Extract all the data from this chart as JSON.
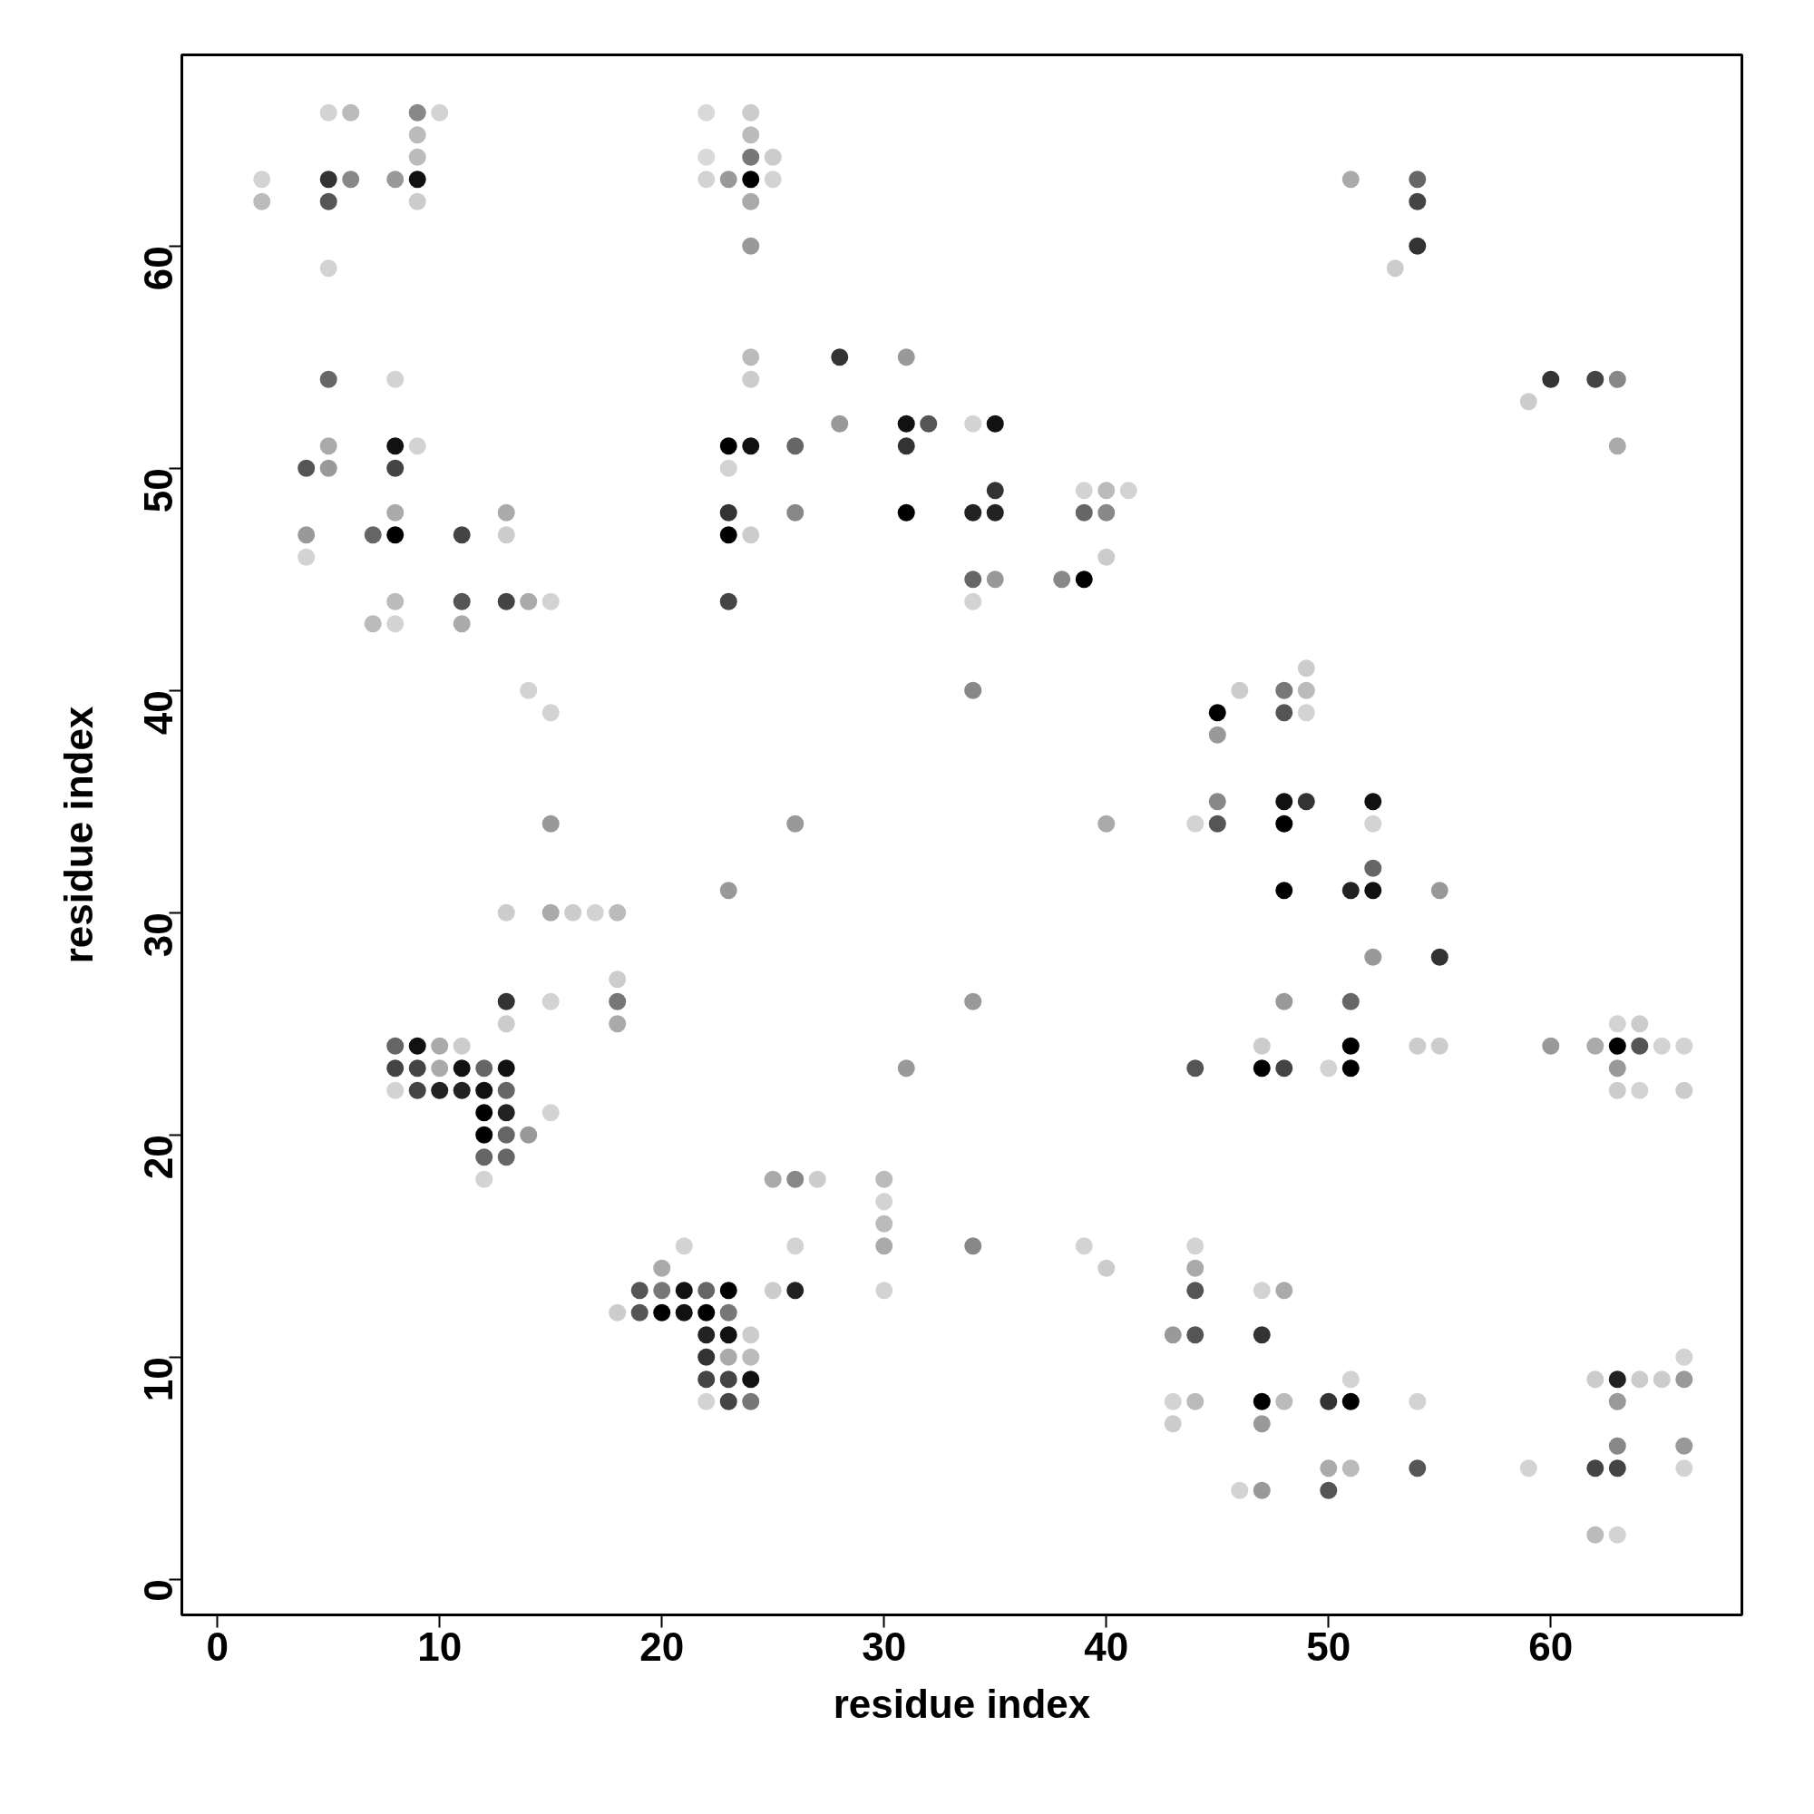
{
  "chart_data": {
    "type": "scatter",
    "xlabel": "residue index",
    "ylabel": "residue index",
    "xlim": [
      -1.6,
      68.6
    ],
    "ylim": [
      -1.6,
      68.6
    ],
    "xticks": [
      0,
      10,
      20,
      30,
      40,
      50,
      60
    ],
    "yticks": [
      0,
      10,
      20,
      30,
      40,
      50,
      60
    ],
    "grid": false,
    "marker": "circle",
    "series": [
      {
        "x": [
          5,
          6,
          9,
          10,
          22,
          24,
          9,
          24,
          9,
          22,
          24,
          25,
          2,
          5,
          6,
          8,
          9,
          22,
          23,
          24,
          25,
          51,
          54,
          2,
          5,
          9,
          24,
          54,
          24,
          54,
          5,
          53,
          24,
          28,
          31,
          5,
          8,
          24,
          60,
          62,
          63,
          59,
          28,
          31,
          32,
          34,
          35,
          5,
          8,
          9,
          23,
          24,
          26,
          31,
          63,
          4,
          5,
          8,
          23,
          35,
          39,
          40,
          41,
          8,
          13,
          23,
          26,
          31,
          34,
          35,
          39,
          40,
          4,
          7,
          8,
          11,
          13,
          23,
          24,
          4,
          40,
          34,
          35,
          38,
          39,
          8,
          11,
          13,
          14,
          15,
          23,
          34,
          7,
          8,
          11,
          49,
          14,
          34,
          46,
          48,
          49,
          15,
          45,
          48,
          49,
          45,
          45,
          48,
          49,
          52,
          15,
          26,
          40,
          44,
          45,
          48,
          52,
          52,
          23,
          48,
          51,
          52,
          55,
          13,
          15,
          16,
          17,
          18,
          52,
          55,
          18,
          13,
          15,
          18,
          34,
          48,
          51,
          13,
          18,
          63,
          64,
          8,
          9,
          10,
          11,
          47,
          51,
          54,
          55,
          60,
          62,
          63,
          64,
          65,
          66,
          8,
          9,
          10,
          11,
          12,
          13,
          31,
          44,
          47,
          48,
          50,
          51,
          63,
          8,
          9,
          10,
          11,
          12,
          13,
          63,
          64,
          66,
          12,
          13,
          15,
          12,
          13,
          14,
          12,
          13,
          12,
          25,
          26,
          27,
          30,
          30,
          30,
          21,
          26,
          30,
          34,
          39,
          44,
          20,
          40,
          44,
          19,
          20,
          21,
          22,
          23,
          25,
          26,
          30,
          44,
          47,
          48,
          18,
          19,
          20,
          21,
          22,
          23,
          22,
          23,
          24,
          43,
          44,
          47,
          22,
          23,
          24,
          66,
          22,
          23,
          24,
          51,
          62,
          63,
          64,
          65,
          66,
          22,
          23,
          24,
          43,
          44,
          47,
          48,
          50,
          51,
          54,
          63,
          43,
          47,
          63,
          66,
          50,
          51,
          54,
          59,
          62,
          63,
          66,
          46,
          47,
          50,
          62,
          63
        ],
        "values": [
          66,
          66,
          66,
          66,
          66,
          66,
          65,
          65,
          64,
          64,
          64,
          64,
          63,
          63,
          63,
          63,
          63,
          63,
          63,
          63,
          63,
          63,
          63,
          62,
          62,
          62,
          62,
          62,
          60,
          60,
          59,
          59,
          55,
          55,
          55,
          54,
          54,
          54,
          54,
          54,
          54,
          53,
          52,
          52,
          52,
          52,
          52,
          51,
          51,
          51,
          51,
          51,
          51,
          51,
          51,
          50,
          50,
          50,
          50,
          49,
          49,
          49,
          49,
          48,
          48,
          48,
          48,
          48,
          48,
          48,
          48,
          48,
          47,
          47,
          47,
          47,
          47,
          47,
          47,
          46,
          46,
          45,
          45,
          45,
          45,
          44,
          44,
          44,
          44,
          44,
          44,
          44,
          43,
          43,
          43,
          41,
          40,
          40,
          40,
          40,
          40,
          39,
          39,
          39,
          39,
          38,
          35,
          35,
          35,
          35,
          34,
          34,
          34,
          34,
          34,
          34,
          34,
          32,
          31,
          31,
          31,
          31,
          31,
          30,
          30,
          30,
          30,
          30,
          28,
          28,
          27,
          26,
          26,
          26,
          26,
          26,
          26,
          25,
          25,
          25,
          25,
          24,
          24,
          24,
          24,
          24,
          24,
          24,
          24,
          24,
          24,
          24,
          24,
          24,
          24,
          23,
          23,
          23,
          23,
          23,
          23,
          23,
          23,
          23,
          23,
          23,
          23,
          23,
          22,
          22,
          22,
          22,
          22,
          22,
          22,
          22,
          22,
          21,
          21,
          21,
          20,
          20,
          20,
          19,
          19,
          18,
          18,
          18,
          18,
          18,
          17,
          16,
          15,
          15,
          15,
          15,
          15,
          15,
          14,
          14,
          14,
          13,
          13,
          13,
          13,
          13,
          13,
          13,
          13,
          13,
          13,
          13,
          12,
          12,
          12,
          12,
          12,
          12,
          11,
          11,
          11,
          11,
          11,
          11,
          10,
          10,
          10,
          10,
          9,
          9,
          9,
          9,
          9,
          9,
          9,
          9,
          9,
          8,
          8,
          8,
          8,
          8,
          8,
          8,
          8,
          8,
          8,
          8,
          7,
          7,
          6,
          6,
          5,
          5,
          5,
          5,
          5,
          5,
          5,
          4,
          4,
          4,
          2,
          2
        ],
        "colors": [
          "#d3d3d3",
          "#bbbbbb",
          "#888888",
          "#d3d3d3",
          "#d9d9d9",
          "#cccccc",
          "#bbbbbb",
          "#bbbbbb",
          "#bbbbbb",
          "#d9d9d9",
          "#777777",
          "#cccccc",
          "#d3d3d3",
          "#333333",
          "#888888",
          "#999999",
          "#111111",
          "#d3d3d3",
          "#999999",
          "#000000",
          "#d3d3d3",
          "#aaaaaa",
          "#666666",
          "#bbbbbb",
          "#555555",
          "#cccccc",
          "#aaaaaa",
          "#444444",
          "#999999",
          "#333333",
          "#d3d3d3",
          "#cccccc",
          "#bbbbbb",
          "#333333",
          "#999999",
          "#666666",
          "#d3d3d3",
          "#cccccc",
          "#333333",
          "#444444",
          "#888888",
          "#cccccc",
          "#999999",
          "#111111",
          "#555555",
          "#d3d3d3",
          "#111111",
          "#aaaaaa",
          "#111111",
          "#d3d3d3",
          "#000000",
          "#111111",
          "#666666",
          "#333333",
          "#aaaaaa",
          "#555555",
          "#999999",
          "#444444",
          "#d3d3d3",
          "#333333",
          "#d3d3d3",
          "#bbbbbb",
          "#d3d3d3",
          "#aaaaaa",
          "#aaaaaa",
          "#333333",
          "#888888",
          "#000000",
          "#222222",
          "#222222",
          "#666666",
          "#888888",
          "#999999",
          "#666666",
          "#000000",
          "#444444",
          "#cccccc",
          "#000000",
          "#cccccc",
          "#d3d3d3",
          "#cccccc",
          "#666666",
          "#999999",
          "#888888",
          "#000000",
          "#bbbbbb",
          "#555555",
          "#444444",
          "#aaaaaa",
          "#d3d3d3",
          "#444444",
          "#d3d3d3",
          "#bbbbbb",
          "#d3d3d3",
          "#aaaaaa",
          "#cccccc",
          "#d3d3d3",
          "#888888",
          "#cccccc",
          "#777777",
          "#bbbbbb",
          "#d3d3d3",
          "#000000",
          "#555555",
          "#d3d3d3",
          "#999999",
          "#888888",
          "#111111",
          "#333333",
          "#111111",
          "#999999",
          "#999999",
          "#aaaaaa",
          "#d3d3d3",
          "#555555",
          "#000000",
          "#d3d3d3",
          "#666666",
          "#999999",
          "#000000",
          "#222222",
          "#111111",
          "#999999",
          "#cccccc",
          "#aaaaaa",
          "#cccccc",
          "#d3d3d3",
          "#bbbbbb",
          "#999999",
          "#333333",
          "#cccccc",
          "#333333",
          "#d3d3d3",
          "#777777",
          "#999999",
          "#999999",
          "#666666",
          "#cccccc",
          "#aaaaaa",
          "#d3d3d3",
          "#cccccc",
          "#666666",
          "#111111",
          "#aaaaaa",
          "#cccccc",
          "#cccccc",
          "#000000",
          "#cccccc",
          "#cccccc",
          "#999999",
          "#aaaaaa",
          "#000000",
          "#555555",
          "#d3d3d3",
          "#d3d3d3",
          "#444444",
          "#444444",
          "#aaaaaa",
          "#111111",
          "#666666",
          "#111111",
          "#999999",
          "#555555",
          "#000000",
          "#444444",
          "#d3d3d3",
          "#000000",
          "#999999",
          "#d3d3d3",
          "#444444",
          "#222222",
          "#222222",
          "#111111",
          "#666666",
          "#cccccc",
          "#d3d3d3",
          "#cccccc",
          "#000000",
          "#222222",
          "#d3d3d3",
          "#000000",
          "#666666",
          "#999999",
          "#666666",
          "#666666",
          "#d3d3d3",
          "#aaaaaa",
          "#888888",
          "#cccccc",
          "#bbbbbb",
          "#d3d3d3",
          "#bbbbbb",
          "#d3d3d3",
          "#d3d3d3",
          "#aaaaaa",
          "#888888",
          "#d3d3d3",
          "#d3d3d3",
          "#aaaaaa",
          "#cccccc",
          "#aaaaaa",
          "#555555",
          "#777777",
          "#111111",
          "#666666",
          "#000000",
          "#cccccc",
          "#222222",
          "#d3d3d3",
          "#555555",
          "#d3d3d3",
          "#aaaaaa",
          "#cccccc",
          "#555555",
          "#000000",
          "#111111",
          "#000000",
          "#777777",
          "#222222",
          "#111111",
          "#cccccc",
          "#999999",
          "#555555",
          "#333333",
          "#333333",
          "#aaaaaa",
          "#bbbbbb",
          "#d3d3d3",
          "#444444",
          "#444444",
          "#111111",
          "#d3d3d3",
          "#cccccc",
          "#222222",
          "#cccccc",
          "#cccccc",
          "#999999",
          "#d3d3d3",
          "#444444",
          "#777777",
          "#d3d3d3",
          "#bbbbbb",
          "#000000",
          "#bbbbbb",
          "#333333",
          "#000000",
          "#d3d3d3",
          "#999999",
          "#cccccc",
          "#999999",
          "#888888",
          "#999999",
          "#aaaaaa",
          "#bbbbbb",
          "#555555",
          "#d3d3d3",
          "#444444",
          "#444444",
          "#d3d3d3",
          "#d3d3d3",
          "#999999",
          "#555555",
          "#bbbbbb",
          "#d3d3d3"
        ]
      }
    ]
  }
}
